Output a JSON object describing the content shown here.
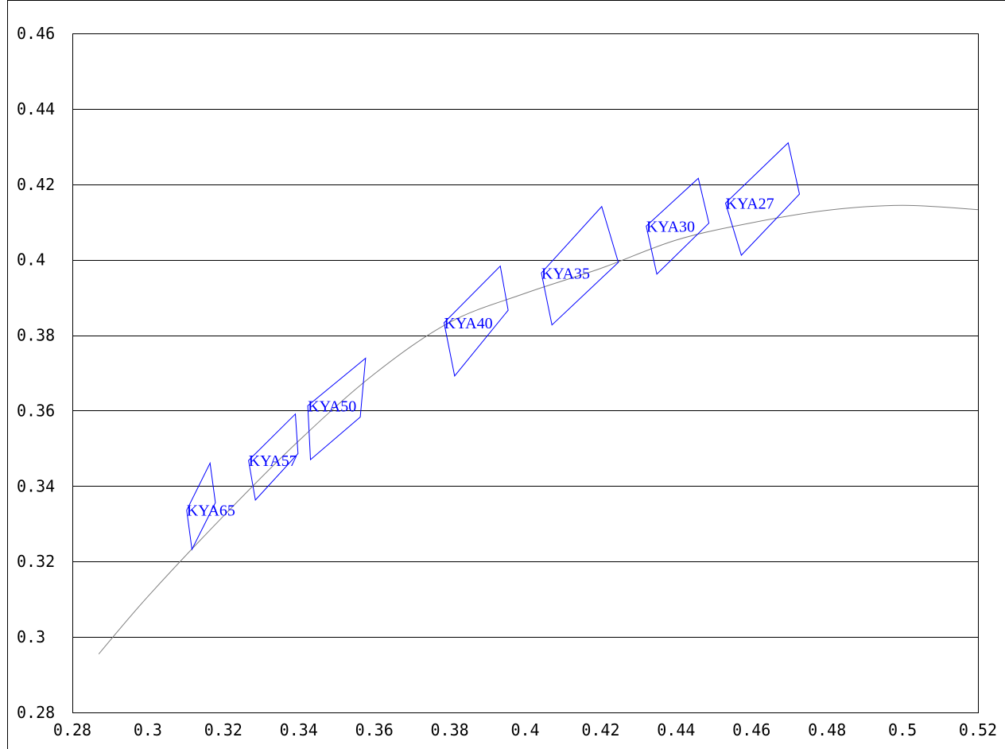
{
  "chart_data": {
    "type": "scatter",
    "title": "",
    "xlabel": "",
    "ylabel": "",
    "xlim": [
      0.28,
      0.52
    ],
    "ylim": [
      0.28,
      0.46
    ],
    "x_ticks": [
      "0.28",
      "0.3",
      "0.32",
      "0.34",
      "0.36",
      "0.38",
      "0.4",
      "0.42",
      "0.44",
      "0.46",
      "0.48",
      "0.5",
      "0.52"
    ],
    "y_ticks": [
      "0.28",
      "0.3",
      "0.32",
      "0.34",
      "0.36",
      "0.38",
      "0.4",
      "0.42",
      "0.44",
      "0.46"
    ],
    "grid": "horizontal",
    "colors": {
      "bins": "#0000ff",
      "curve": "#808080",
      "grid": "#000000"
    },
    "bins": [
      {
        "label": "KYA65",
        "corners": [
          [
            0.3103,
            0.3336
          ],
          [
            0.3165,
            0.3461
          ],
          [
            0.3179,
            0.3356
          ],
          [
            0.3117,
            0.3232
          ]
        ]
      },
      {
        "label": "KYA57",
        "corners": [
          [
            0.3267,
            0.3468
          ],
          [
            0.3391,
            0.3591
          ],
          [
            0.3398,
            0.3486
          ],
          [
            0.3285,
            0.3363
          ]
        ]
      },
      {
        "label": "KYA50",
        "corners": [
          [
            0.3424,
            0.3613
          ],
          [
            0.3577,
            0.3739
          ],
          [
            0.3563,
            0.3583
          ],
          [
            0.3431,
            0.347
          ]
        ]
      },
      {
        "label": "KYA40",
        "corners": [
          [
            0.3785,
            0.3833
          ],
          [
            0.3934,
            0.3983
          ],
          [
            0.3955,
            0.3866
          ],
          [
            0.3813,
            0.3692
          ]
        ]
      },
      {
        "label": "KYA35",
        "corners": [
          [
            0.4043,
            0.3965
          ],
          [
            0.4203,
            0.4141
          ],
          [
            0.4247,
            0.3993
          ],
          [
            0.4071,
            0.3827
          ]
        ]
      },
      {
        "label": "KYA30",
        "corners": [
          [
            0.4321,
            0.4089
          ],
          [
            0.4459,
            0.4216
          ],
          [
            0.4487,
            0.4097
          ],
          [
            0.4349,
            0.3962
          ]
        ]
      },
      {
        "label": "KYA27",
        "corners": [
          [
            0.4531,
            0.415
          ],
          [
            0.4697,
            0.431
          ],
          [
            0.4727,
            0.4174
          ],
          [
            0.4573,
            0.4012
          ]
        ]
      }
    ],
    "curve": [
      [
        0.287,
        0.2955
      ],
      [
        0.3,
        0.3107
      ],
      [
        0.32,
        0.332
      ],
      [
        0.34,
        0.352
      ],
      [
        0.36,
        0.3697
      ],
      [
        0.38,
        0.3834
      ],
      [
        0.4,
        0.3911
      ],
      [
        0.42,
        0.3977
      ],
      [
        0.44,
        0.4052
      ],
      [
        0.46,
        0.4098
      ],
      [
        0.48,
        0.4131
      ],
      [
        0.5,
        0.4144
      ],
      [
        0.52,
        0.4133
      ]
    ]
  }
}
